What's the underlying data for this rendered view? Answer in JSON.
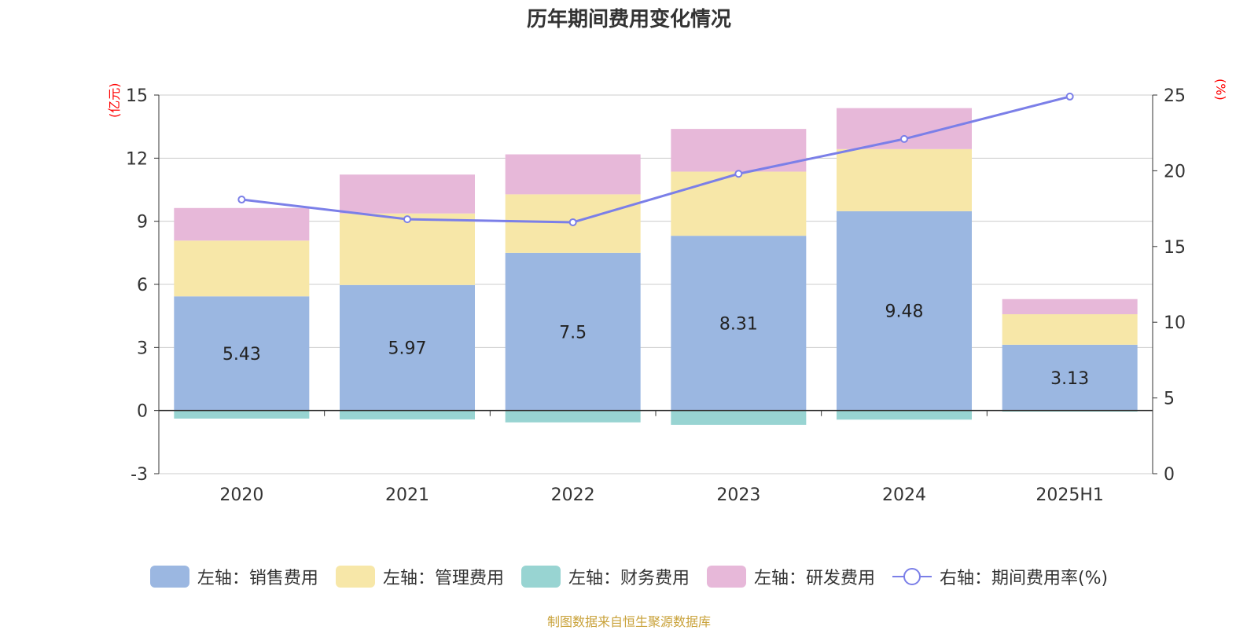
{
  "chart_data": {
    "type": "bar",
    "title": "历年期间费用变化情况",
    "categories": [
      "2020",
      "2021",
      "2022",
      "2023",
      "2024",
      "2025H1"
    ],
    "left_axis": {
      "unit": "(亿元)",
      "ylim": [
        -3,
        15
      ],
      "ticks": [
        "-3",
        "0",
        "3",
        "6",
        "9",
        "12",
        "15"
      ]
    },
    "right_axis": {
      "unit": "(%)",
      "ylim": [
        0,
        25
      ],
      "ticks": [
        "0",
        "5",
        "10",
        "15",
        "20",
        "25"
      ]
    },
    "series": [
      {
        "name": "左轴：销售费用",
        "axis": "left",
        "type": "bar",
        "color": "#9bb7e1",
        "values": [
          5.43,
          5.97,
          7.5,
          8.31,
          9.48,
          3.13
        ],
        "labels": [
          "5.43",
          "5.97",
          "7.5",
          "8.31",
          "9.48",
          "3.13"
        ]
      },
      {
        "name": "左轴：管理费用",
        "axis": "left",
        "type": "bar",
        "color": "#f7e7a8",
        "values": [
          2.65,
          3.4,
          2.78,
          3.05,
          2.95,
          1.45
        ]
      },
      {
        "name": "左轴：财务费用",
        "axis": "left",
        "type": "bar",
        "color": "#98d4d2",
        "values": [
          -0.38,
          -0.42,
          -0.56,
          -0.68,
          -0.43,
          -0.05
        ]
      },
      {
        "name": "左轴：研发费用",
        "axis": "left",
        "type": "bar",
        "color": "#e7b8d9",
        "values": [
          1.55,
          1.85,
          1.9,
          2.03,
          1.95,
          0.72
        ]
      },
      {
        "name": "右轴：期间费用率(%)",
        "axis": "right",
        "type": "line",
        "color": "#7b7fe8",
        "values": [
          18.1,
          16.8,
          16.6,
          19.8,
          22.1,
          24.9
        ]
      }
    ],
    "grid": true,
    "legend_position": "bottom"
  },
  "source_text": "制图数据来自恒生聚源数据库"
}
